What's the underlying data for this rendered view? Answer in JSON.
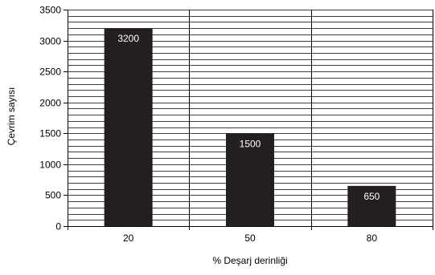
{
  "chart_data": {
    "type": "bar",
    "categories": [
      "20",
      "50",
      "80"
    ],
    "values": [
      3200,
      1500,
      650
    ],
    "data_labels": [
      "3200",
      "1500",
      "650"
    ],
    "xlabel": "% Deşarj derinliği",
    "ylabel": "Çevrim sayısı",
    "ylim": [
      0,
      3500
    ],
    "y_ticks": [
      0,
      500,
      1000,
      1500,
      2000,
      2500,
      3000,
      3500
    ],
    "y_minor_step": 100,
    "grid": true,
    "bar_color": "#231f20",
    "label_color": "#ffffff",
    "grid_color": "#000000"
  }
}
